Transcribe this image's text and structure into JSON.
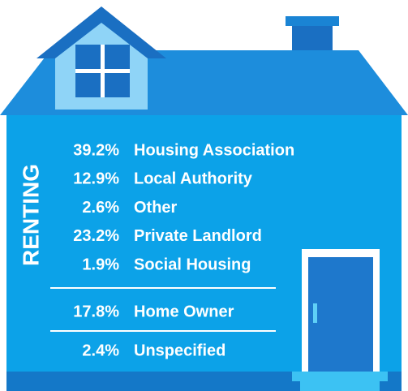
{
  "side_label": "RENTING",
  "renting": [
    {
      "percent": "39.2%",
      "label": "Housing Association"
    },
    {
      "percent": "12.9%",
      "label": "Local Authority"
    },
    {
      "percent": "2.6%",
      "label": "Other"
    },
    {
      "percent": "23.2%",
      "label": "Private Landlord"
    },
    {
      "percent": "1.9%",
      "label": "Social Housing"
    }
  ],
  "other": [
    {
      "percent": "17.8%",
      "label": "Home Owner"
    },
    {
      "percent": "2.4%",
      "label": "Unspecified"
    }
  ]
}
